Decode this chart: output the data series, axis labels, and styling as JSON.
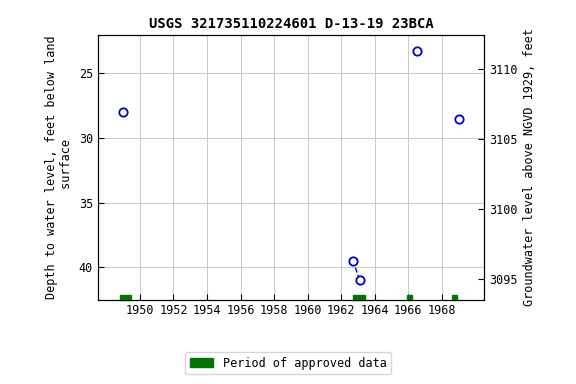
{
  "title": "USGS 321735110224601 D-13-19 23BCA",
  "ylabel_left": "Depth to water level, feet below land\n surface",
  "ylabel_right": "Groundwater level above NGVD 1929, feet",
  "xlim": [
    1947.5,
    1970.5
  ],
  "ylim_left": [
    42.5,
    22.0
  ],
  "ylim_right": [
    3093.5,
    3112.5
  ],
  "xticks": [
    1950,
    1952,
    1954,
    1956,
    1958,
    1960,
    1962,
    1964,
    1966,
    1968
  ],
  "yticks_left": [
    25,
    30,
    35,
    40
  ],
  "yticks_right": [
    3095,
    3100,
    3105,
    3110
  ],
  "scatter_x": [
    1949.0,
    1962.7,
    1963.1,
    1966.5,
    1969.0
  ],
  "scatter_y": [
    28.0,
    39.5,
    41.0,
    23.3,
    28.5
  ],
  "dashed_line_x": [
    1962.7,
    1963.1
  ],
  "dashed_line_y": [
    39.5,
    41.0
  ],
  "green_bars": [
    [
      1948.8,
      1949.5
    ],
    [
      1962.7,
      1963.4
    ],
    [
      1965.9,
      1966.2
    ],
    [
      1968.6,
      1968.9
    ]
  ],
  "legend_label": "Period of approved data",
  "bg_color": "#ffffff",
  "grid_color": "#c8c8c8",
  "marker_color": "#0000cc",
  "marker_facecolor": "#ffffff",
  "title_fontsize": 10,
  "label_fontsize": 8.5,
  "tick_fontsize": 8.5
}
